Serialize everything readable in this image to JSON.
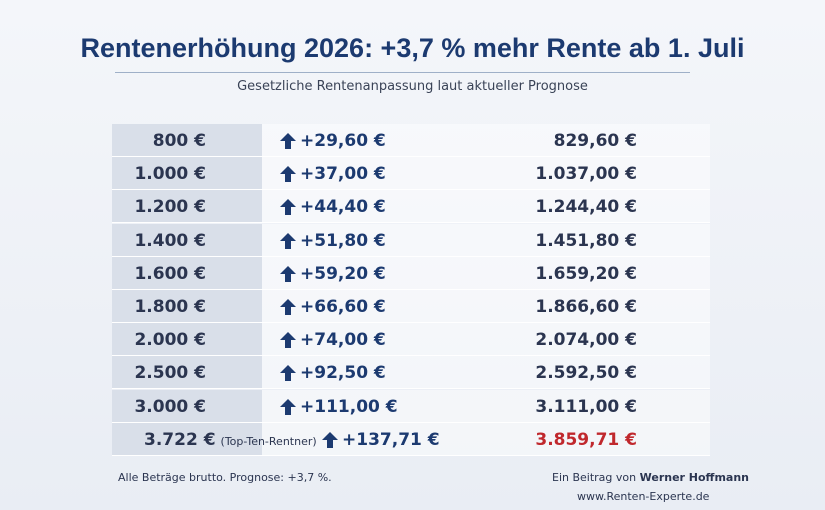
{
  "header": {
    "title": "Rentenerhöhung 2026: +3,7 % mehr Rente ab 1. Juli",
    "subtitle": "Gesetzliche Rentenanpassung laut aktueller Prognose"
  },
  "table": {
    "rows": [
      [
        "800 €",
        "+29,60 €",
        "829,60 €"
      ],
      [
        "1.000 €",
        "+37,00 €",
        "1.037,00 €"
      ],
      [
        "1.200 €",
        "+44,40 €",
        "1.244,40 €"
      ],
      [
        "1.400 €",
        "+51,80 €",
        "1.451,80 €"
      ],
      [
        "1.600 €",
        "+59,20 €",
        "1.659,20 €"
      ],
      [
        "1.800 €",
        "+66,60 €",
        "1.866,60 €"
      ],
      [
        "2.000 €",
        "+74,00 €",
        "2.074,00 €"
      ],
      [
        "2.500 €",
        "+92,50 €",
        "2.592,50 €"
      ],
      [
        "3.000 €",
        "+111,00 €",
        "3.111,00 €"
      ],
      [
        "3.722 €",
        "+137,71 €",
        "3.859,71 €"
      ]
    ],
    "last_row_note": "(Top-Ten-Rentner)"
  },
  "footer": {
    "note": "Alle Beträge brutto. Prognose: +3,7 %.",
    "credit_prefix": "Ein Beitrag von",
    "author": "Werner Hoffmann",
    "website": "www.Renten-Experte.de"
  }
}
